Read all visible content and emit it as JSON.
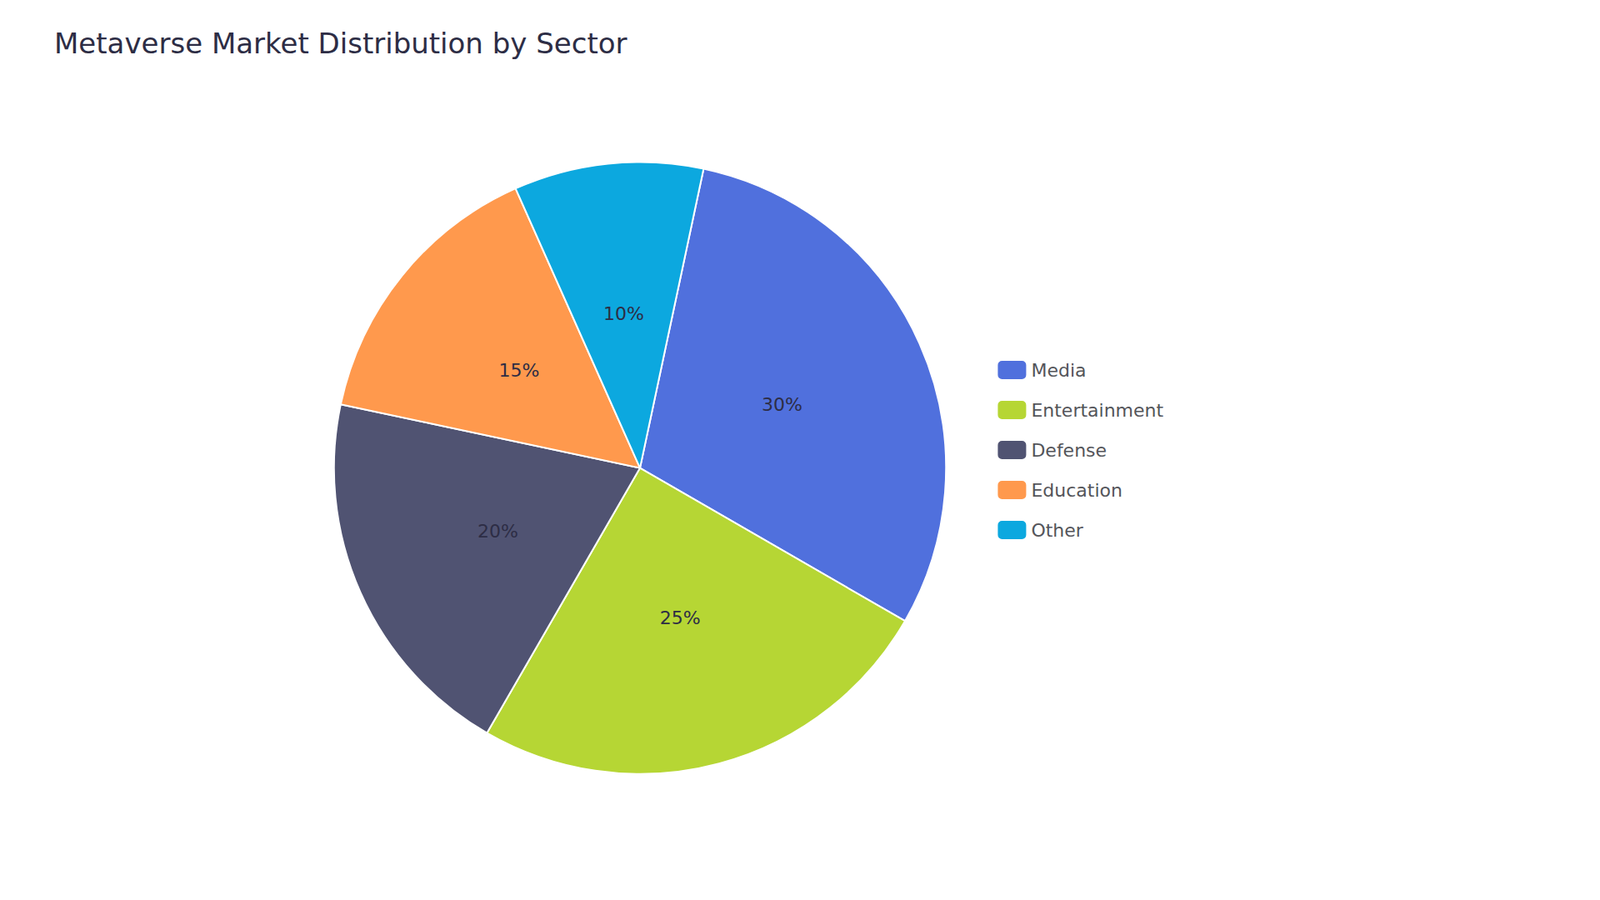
{
  "chart_data": {
    "type": "pie",
    "title": "Metaverse Market Distribution by Sector",
    "categories": [
      "Media",
      "Entertainment",
      "Defense",
      "Education",
      "Other"
    ],
    "values": [
      30,
      25,
      20,
      15,
      10
    ],
    "value_labels": [
      "30%",
      "25%",
      "20%",
      "15%",
      "10%"
    ],
    "data_labels": true,
    "legend": "right"
  }
}
